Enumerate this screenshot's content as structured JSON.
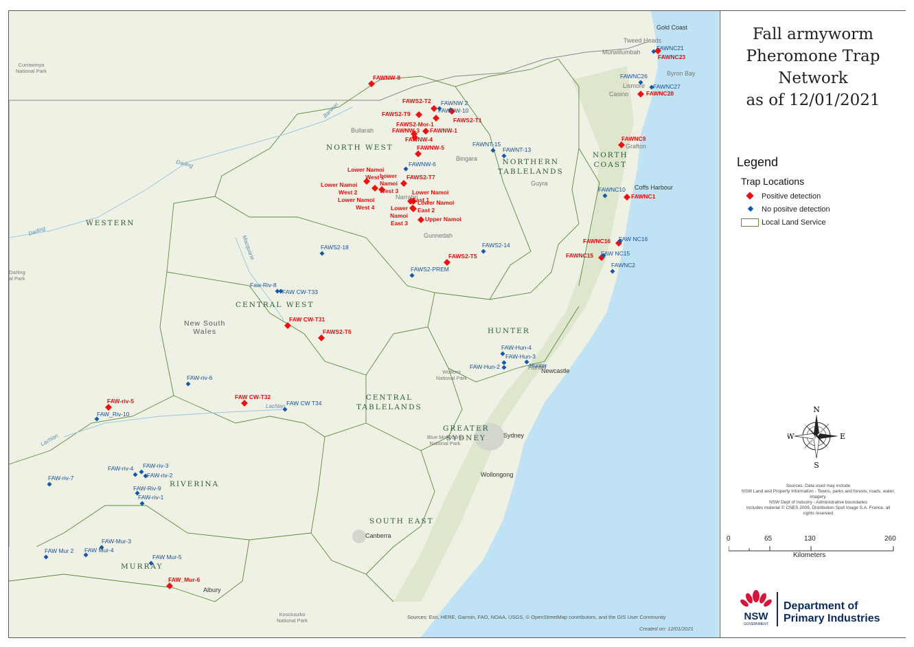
{
  "title_lines": [
    "Fall armyworm",
    "Pheromone Trap",
    "Network",
    "as of 12/01/2021"
  ],
  "legend": {
    "heading": "Legend",
    "subheading": "Trap Locations",
    "positive": "Positive detection",
    "negative": "No positve detection",
    "lls": "Local Land Service"
  },
  "colors": {
    "positive": "#ee1111",
    "negative": "#1557a8",
    "ocean": "#bfe3f4",
    "land": "#eef1e3",
    "boundary": "#5a8a3a"
  },
  "sources_text": "Sources: Data used may include\nNSW Land and Property Information - Towns, parks and forests, roads, water, imagery.\nNSW Dept of Industry - Administrative boundaries\nIncludes material © CNES 2009, Distribution Spot Image S.A. France, all rights reserved",
  "scale": {
    "ticks": [
      "0",
      "65",
      "130",
      "260"
    ],
    "unit": "Kilometers"
  },
  "compass": {
    "n": "N",
    "s": "S",
    "e": "E",
    "w": "W"
  },
  "department": {
    "line1": "Department of",
    "line2": "Primary Industries",
    "logo_text": "NSW",
    "logo_sub": "GOVERNMENT"
  },
  "credit": "Sources: Esri, HERE, Garmin, FAO, NOAA, USGS, © OpenStreetMap contributors, and the GIS User Community",
  "created": "Created on: 12/01/2021",
  "regions": [
    {
      "id": "north-west",
      "text": "NORTH WEST"
    },
    {
      "id": "northern-tablelands",
      "text": "NORTHERN\nTABLELANDS"
    },
    {
      "id": "north-coast",
      "text": "NORTH\nCOAST"
    },
    {
      "id": "western",
      "text": "WESTERN"
    },
    {
      "id": "central-west",
      "text": "CENTRAL WEST"
    },
    {
      "id": "hunter",
      "text": "HUNTER"
    },
    {
      "id": "central-tablelands",
      "text": "CENTRAL\nTABLELANDS"
    },
    {
      "id": "greater-sydney",
      "text": "GREATER\nSYDNEY"
    },
    {
      "id": "riverina",
      "text": "RIVERINA"
    },
    {
      "id": "south-east",
      "text": "SOUTH EAST"
    },
    {
      "id": "murray",
      "text": "MURRAY"
    }
  ],
  "places": [
    {
      "id": "gold-coast",
      "text": "Gold Coast"
    },
    {
      "id": "tweed-heads",
      "text": "Tweed Heads"
    },
    {
      "id": "murwillumbah",
      "text": "Murwillumbah"
    },
    {
      "id": "byron-bay",
      "text": "Byron Bay"
    },
    {
      "id": "lismore",
      "text": "Lismore"
    },
    {
      "id": "casino",
      "text": "Casino"
    },
    {
      "id": "grafton",
      "text": "Grafton"
    },
    {
      "id": "coffs-harbour",
      "text": "Coffs Harbour"
    },
    {
      "id": "guyra",
      "text": "Guyra"
    },
    {
      "id": "bingara",
      "text": "Bingara"
    },
    {
      "id": "bullarah",
      "text": "Bullarah"
    },
    {
      "id": "narrabri",
      "text": "Narrabri"
    },
    {
      "id": "gunnedah",
      "text": "Gunnedah"
    },
    {
      "id": "newcastle",
      "text": "Newcastle"
    },
    {
      "id": "hunter-town",
      "text": "Hunter"
    },
    {
      "id": "sydney",
      "text": "Sydney"
    },
    {
      "id": "wollongong",
      "text": "Wollongong"
    },
    {
      "id": "canberra",
      "text": "Canberra"
    },
    {
      "id": "albury",
      "text": "Albury"
    },
    {
      "id": "currawinya",
      "text": "Currawinya\nNational Park"
    },
    {
      "id": "darling-park",
      "text": "Darling\nal Park"
    },
    {
      "id": "new-south-wales",
      "text": "New South\nWales"
    },
    {
      "id": "wollemi",
      "text": "Wollemi\nNational Park"
    },
    {
      "id": "blue-mountains",
      "text": "Blue Mountains\nNational Park"
    },
    {
      "id": "kosciuszko",
      "text": "Kosciuszko\nNational Park"
    },
    {
      "id": "darling-river",
      "text": "Darling"
    },
    {
      "id": "darling-river2",
      "text": "Darling"
    },
    {
      "id": "barwon",
      "text": "Barwon"
    },
    {
      "id": "macquarie",
      "text": "Macquarie"
    },
    {
      "id": "lachlan",
      "text": "Lachlan"
    },
    {
      "id": "lachlan2",
      "text": "Lachlan"
    }
  ],
  "traps": [
    {
      "id": "FAWNW-8",
      "label": "FAWNW-8",
      "status": "positive"
    },
    {
      "id": "FAWS2-T2",
      "label": "FAWS2-T2",
      "status": "positive"
    },
    {
      "id": "FAWNW-2",
      "label": "FAWNW 2",
      "status": "negative"
    },
    {
      "id": "FAWNW-10",
      "label": "FAWNW-10",
      "status": "negative"
    },
    {
      "id": "FAWS2-T1",
      "label": "FAWS2-T1",
      "status": "positive"
    },
    {
      "id": "FAWS2-T9",
      "label": "FAWS2-T9",
      "status": "positive"
    },
    {
      "id": "FAWS2-Mor-1",
      "label": "FAWS2-Mor-1",
      "status": "positive"
    },
    {
      "id": "FAWNW-3",
      "label": "FAWNW-3",
      "status": "positive"
    },
    {
      "id": "FAWNW-1",
      "label": "FAWNW-1",
      "status": "positive"
    },
    {
      "id": "FAWNW-4",
      "label": "FAWNW-4",
      "status": "positive"
    },
    {
      "id": "FAWNW-5",
      "label": "FAWNW-5",
      "status": "positive"
    },
    {
      "id": "FAWNW-6",
      "label": "FAWNW-6",
      "status": "negative"
    },
    {
      "id": "FAWNT-15",
      "label": "FAWNT-15",
      "status": "negative"
    },
    {
      "id": "FAWNT-13",
      "label": "FAWNT-13",
      "status": "negative"
    },
    {
      "id": "LNW1",
      "label": "Lower Namoi\nWest 1",
      "status": "positive"
    },
    {
      "id": "LNW2",
      "label": "Lower Namoi\nWest 2",
      "status": "positive"
    },
    {
      "id": "LNW3",
      "label": "Lower\nNamoi\nWest 3",
      "status": "positive"
    },
    {
      "id": "LNW4",
      "label": "Lower Namoi\nWest 4",
      "status": "positive"
    },
    {
      "id": "FAWS2-T7",
      "label": "FAWS2-T7",
      "status": "positive"
    },
    {
      "id": "LNE1",
      "label": "Lower Namoi\nEast 1",
      "status": "positive"
    },
    {
      "id": "LNE2",
      "label": "Lower Namoi\nEast 2",
      "status": "positive"
    },
    {
      "id": "LNE3",
      "label": "Lower\nNamoi\nEast 3",
      "status": "positive"
    },
    {
      "id": "UN",
      "label": "Upper Namoi",
      "status": "positive"
    },
    {
      "id": "FAWS2-18",
      "label": "FAWS2-18",
      "status": "negative"
    },
    {
      "id": "FAWS2-14",
      "label": "FAWS2-14",
      "status": "negative"
    },
    {
      "id": "FAWS2-T5",
      "label": "FAWS2-T5",
      "status": "positive"
    },
    {
      "id": "FAWS2-PREM",
      "label": "FAWS2-PREM",
      "status": "negative"
    },
    {
      "id": "Faw-Riv-8",
      "label": "Faw-Riv-8",
      "status": "negative"
    },
    {
      "id": "FAW-CW-T33",
      "label": "FAW CW-T33",
      "status": "negative"
    },
    {
      "id": "FAW-CW-T31",
      "label": "FAW CW-T31",
      "status": "positive"
    },
    {
      "id": "FAWS2-T6",
      "label": "FAWS2-T6",
      "status": "positive"
    },
    {
      "id": "FAW-riv-6",
      "label": "FAW-riv-6",
      "status": "negative"
    },
    {
      "id": "FAW-riv-5",
      "label": "FAW-riv-5",
      "status": "positive"
    },
    {
      "id": "FAW-Riv-10",
      "label": "FAW_Riv-10",
      "status": "negative"
    },
    {
      "id": "FAW-CW-T32",
      "label": "FAW CW-T32",
      "status": "positive"
    },
    {
      "id": "FAW-CW-T34",
      "label": "FAW CW T34",
      "status": "negative"
    },
    {
      "id": "FAW-Hun-4",
      "label": "FAW-Hun-4",
      "status": "negative"
    },
    {
      "id": "FAW-Hun-3",
      "label": "FAW-Hun-3",
      "status": "negative"
    },
    {
      "id": "FAW-Hun-2",
      "label": "FAW-Hun-2",
      "status": "negative"
    },
    {
      "id": "FAW-Hun-1",
      "label": "Hunter",
      "status": "negative"
    },
    {
      "id": "FAW-riv-3",
      "label": "FAW-riv-3",
      "status": "negative"
    },
    {
      "id": "FAW-riv-4",
      "label": "FAW-riv-4",
      "status": "negative"
    },
    {
      "id": "FAW-riv-2",
      "label": "FAW-riv-2",
      "status": "negative"
    },
    {
      "id": "FAW-Riv-9",
      "label": "FAW-Riv-9",
      "status": "negative"
    },
    {
      "id": "FAW-riv-1",
      "label": "FAW-riv-1",
      "status": "negative"
    },
    {
      "id": "FAW-riv-7",
      "label": "FAW-riv-7",
      "status": "negative"
    },
    {
      "id": "FAW-Mur-2",
      "label": "FAW Mur 2",
      "status": "negative"
    },
    {
      "id": "FAW-Mur-3",
      "label": "FAW-Mur-3",
      "status": "negative"
    },
    {
      "id": "FAW-Mur-4",
      "label": "FAW Mur-4",
      "status": "negative"
    },
    {
      "id": "FAW-Mur-5",
      "label": "FAW Mur-5",
      "status": "negative"
    },
    {
      "id": "FAW-Mur-6",
      "label": "FAW_Mur-6",
      "status": "positive"
    },
    {
      "id": "FAWNC21",
      "label": "FAWNC21",
      "status": "negative"
    },
    {
      "id": "FAWNC23",
      "label": "FAWNC23",
      "status": "positive"
    },
    {
      "id": "FAWNC26",
      "label": "FAWNC26",
      "status": "negative"
    },
    {
      "id": "FAWNC27",
      "label": "FAWNC27",
      "status": "negative"
    },
    {
      "id": "FAWNC28",
      "label": "FAWNC28",
      "status": "positive"
    },
    {
      "id": "FAWNC9",
      "label": "FAWNC9",
      "status": "positive"
    },
    {
      "id": "FAWNC10",
      "label": "FAWNC10",
      "status": "negative"
    },
    {
      "id": "FAWNC1",
      "label": "FAWNC1",
      "status": "positive"
    },
    {
      "id": "FAWNC16",
      "label": "FAWNC16",
      "status": "positive"
    },
    {
      "id": "FAW-NC16",
      "label": "FAW NC16",
      "status": "negative"
    },
    {
      "id": "FAWNC15",
      "label": "FAWNC15",
      "status": "positive"
    },
    {
      "id": "FAW-NC15",
      "label": "FAW NC15",
      "status": "negative"
    },
    {
      "id": "FAWNC2",
      "label": "FAWNC2",
      "status": "negative"
    }
  ]
}
